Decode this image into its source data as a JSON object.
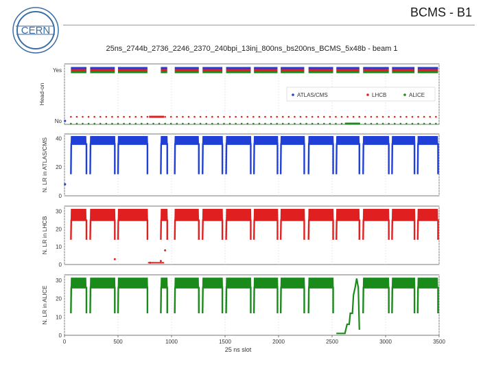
{
  "slide": {
    "title": "BCMS - B1",
    "logo_text": "CERN"
  },
  "chart_data": [
    {
      "type": "scatter",
      "title": "25ns_2744b_2736_2246_2370_240bpi_13inj_800ns_bs200ns_BCMS_5x48b - beam 1",
      "ylabel": "Head-on",
      "ytick_labels": [
        "No",
        "Yes"
      ],
      "xlim": [
        0,
        3500
      ],
      "legend": [
        "ATLAS/CMS",
        "LHCB",
        "ALICE"
      ],
      "legend_position": "right",
      "series": [
        {
          "name": "ATLAS/CMS",
          "color": "#1f3fd6",
          "yes_ranges": [
            [
              60,
              205
            ],
            [
              240,
              470
            ],
            [
              500,
              775
            ],
            [
              900,
              960
            ],
            [
              1030,
              1255
            ],
            [
              1290,
              1475
            ],
            [
              1510,
              1740
            ],
            [
              1770,
              1990
            ],
            [
              2020,
              2240
            ],
            [
              2280,
              2510
            ],
            [
              2540,
              2755
            ],
            [
              2790,
              3030
            ],
            [
              3060,
              3270
            ],
            [
              3300,
              3520
            ]
          ],
          "no_ranges": [
            [
              0,
              10
            ]
          ]
        },
        {
          "name": "LHCB",
          "color": "#e02020",
          "yes_ranges": [
            [
              60,
              205
            ],
            [
              240,
              470
            ],
            [
              500,
              775
            ],
            [
              900,
              960
            ],
            [
              1030,
              1255
            ],
            [
              1290,
              1475
            ],
            [
              1510,
              1740
            ],
            [
              1770,
              1990
            ],
            [
              2020,
              2240
            ],
            [
              2280,
              2510
            ],
            [
              2540,
              2755
            ],
            [
              2790,
              3030
            ],
            [
              3060,
              3270
            ],
            [
              3300,
              3520
            ]
          ],
          "no_ranges": [
            [
              0,
              780
            ],
            [
              780,
              930
            ],
            [
              930,
              3520
            ]
          ]
        },
        {
          "name": "ALICE",
          "color": "#1a8a1a",
          "yes_ranges": [
            [
              60,
              205
            ],
            [
              240,
              470
            ],
            [
              500,
              775
            ],
            [
              900,
              960
            ],
            [
              1030,
              1255
            ],
            [
              1290,
              1475
            ],
            [
              1510,
              1740
            ],
            [
              1770,
              1990
            ],
            [
              2020,
              2240
            ],
            [
              2280,
              2510
            ],
            [
              2540,
              2755
            ],
            [
              2790,
              3030
            ],
            [
              3060,
              3270
            ],
            [
              3300,
              3520
            ]
          ],
          "no_ranges": [
            [
              0,
              2620
            ],
            [
              2620,
              2760
            ],
            [
              2760,
              3520
            ]
          ]
        }
      ]
    },
    {
      "type": "line",
      "ylabel": "N. LR in ATLAS/CMS",
      "ylim": [
        0,
        43
      ],
      "yticks": [
        0,
        20,
        40
      ],
      "color": "#1f3fd6",
      "xlim": [
        0,
        3500
      ],
      "baseline": 36,
      "high": 41,
      "low_floor": 15,
      "groups": [
        [
          60,
          205
        ],
        [
          240,
          470
        ],
        [
          500,
          775
        ],
        [
          900,
          960
        ],
        [
          1030,
          1255
        ],
        [
          1290,
          1475
        ],
        [
          1510,
          1740
        ],
        [
          1770,
          1990
        ],
        [
          2020,
          2240
        ],
        [
          2280,
          2510
        ],
        [
          2540,
          2755
        ],
        [
          2790,
          3030
        ],
        [
          3060,
          3270
        ],
        [
          3300,
          3520
        ]
      ],
      "outlier": {
        "x": 5,
        "y": 8
      }
    },
    {
      "type": "line",
      "ylabel": "N. LR in LHCB",
      "ylim": [
        0,
        33
      ],
      "yticks": [
        0,
        10,
        20,
        30
      ],
      "color": "#e02020",
      "xlim": [
        0,
        3500
      ],
      "baseline": 25,
      "high": 31,
      "low_floor": 14,
      "groups": [
        [
          60,
          205
        ],
        [
          240,
          470
        ],
        [
          500,
          775
        ],
        [
          900,
          960
        ],
        [
          1030,
          1255
        ],
        [
          1290,
          1475
        ],
        [
          1510,
          1740
        ],
        [
          1770,
          1990
        ],
        [
          2020,
          2240
        ],
        [
          2280,
          2510
        ],
        [
          2540,
          2755
        ],
        [
          2790,
          3030
        ],
        [
          3060,
          3270
        ],
        [
          3300,
          3520
        ]
      ],
      "outliers": [
        [
          470,
          3
        ],
        [
          800,
          1
        ],
        [
          900,
          2
        ],
        [
          940,
          8
        ]
      ]
    },
    {
      "type": "line",
      "ylabel": "N. LR in ALICE",
      "ylim": [
        0,
        33
      ],
      "yticks": [
        0,
        10,
        20,
        30
      ],
      "xticks": [
        0,
        500,
        1000,
        1500,
        2000,
        2500,
        3000,
        3500
      ],
      "xlabel": "25 ns slot",
      "color": "#1a8a1a",
      "xlim": [
        0,
        3500
      ],
      "baseline": 26,
      "high": 31,
      "low_floor": 12,
      "groups": [
        [
          60,
          205
        ],
        [
          240,
          470
        ],
        [
          500,
          775
        ],
        [
          900,
          960
        ],
        [
          1030,
          1255
        ],
        [
          1290,
          1475
        ],
        [
          1510,
          1740
        ],
        [
          1770,
          1990
        ],
        [
          2020,
          2240
        ],
        [
          2280,
          2510
        ],
        [
          2540,
          2755
        ],
        [
          2790,
          3030
        ],
        [
          3060,
          3270
        ],
        [
          3300,
          3520
        ]
      ],
      "gap_region": [
        2540,
        2755
      ]
    }
  ]
}
